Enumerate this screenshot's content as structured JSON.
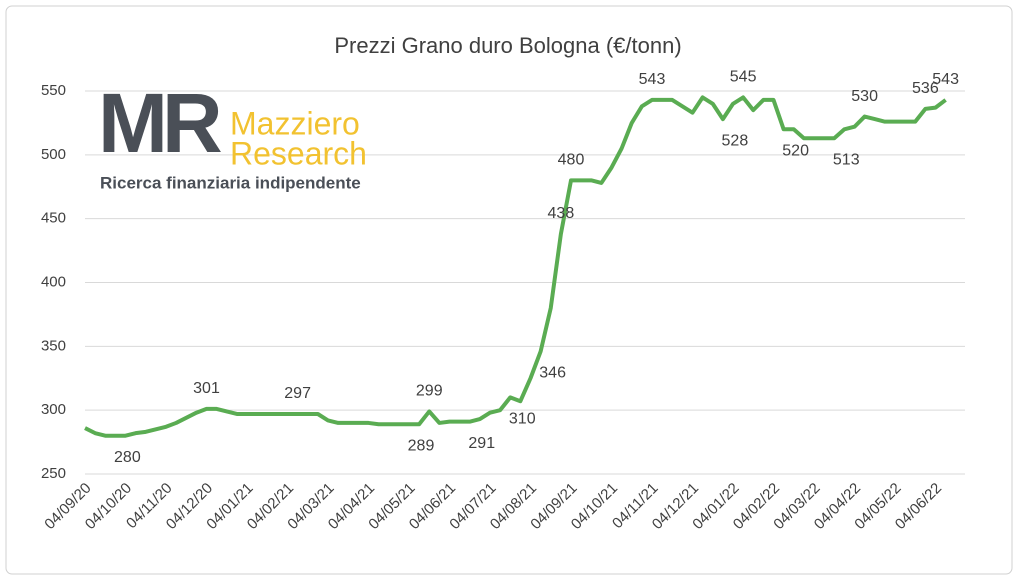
{
  "chart_data": {
    "type": "line",
    "title": "Prezzi Grano duro Bologna (€/tonn)",
    "logo": {
      "mark": "MR",
      "name_lines": [
        "Mazziero",
        "Research"
      ],
      "tagline": "Ricerca finanziaria indipendente"
    },
    "categories": [
      "04/09/20",
      null,
      null,
      null,
      "04/10/20",
      null,
      null,
      null,
      "04/11/20",
      null,
      null,
      null,
      "04/12/20",
      null,
      null,
      null,
      "04/01/21",
      null,
      null,
      null,
      "04/02/21",
      null,
      null,
      null,
      "04/03/21",
      null,
      null,
      null,
      "04/04/21",
      null,
      null,
      null,
      "04/05/21",
      null,
      null,
      null,
      "04/06/21",
      null,
      null,
      null,
      "04/07/21",
      null,
      null,
      null,
      "04/08/21",
      null,
      null,
      null,
      "04/09/21",
      null,
      null,
      null,
      "04/10/21",
      null,
      null,
      null,
      "04/11/21",
      null,
      null,
      null,
      "04/12/21",
      null,
      null,
      null,
      "04/01/22",
      null,
      null,
      null,
      "04/02/22",
      null,
      null,
      null,
      "04/03/22",
      null,
      null,
      null,
      "04/04/22",
      null,
      null,
      null,
      "04/05/22",
      null,
      null,
      null,
      "04/06/22",
      null
    ],
    "series": [
      {
        "name": "Grano duro Bologna",
        "color": "#5aac52",
        "values": [
          286,
          282,
          280,
          280,
          280,
          282,
          283,
          285,
          287,
          290,
          294,
          298,
          301,
          301,
          299,
          297,
          297,
          297,
          297,
          297,
          297,
          297,
          297,
          297,
          292,
          290,
          290,
          290,
          290,
          289,
          289,
          289,
          289,
          289,
          299,
          290,
          291,
          291,
          291,
          293,
          298,
          300,
          310,
          307,
          325,
          346,
          380,
          438,
          480,
          480,
          480,
          478,
          490,
          505,
          525,
          538,
          543,
          543,
          543,
          538,
          533,
          545,
          540,
          528,
          540,
          545,
          535,
          543,
          543,
          520,
          520,
          513,
          513,
          513,
          513,
          520,
          522,
          530,
          528,
          526,
          526,
          526,
          526,
          536,
          537,
          543
        ]
      }
    ],
    "data_labels": [
      3,
      12,
      21,
      32,
      34,
      38,
      42,
      45,
      47,
      48,
      56,
      63,
      65,
      69,
      74,
      77,
      83,
      85
    ],
    "ylim": [
      250,
      550
    ],
    "yticks": [
      250,
      300,
      350,
      400,
      450,
      500,
      550
    ],
    "grid": true
  }
}
